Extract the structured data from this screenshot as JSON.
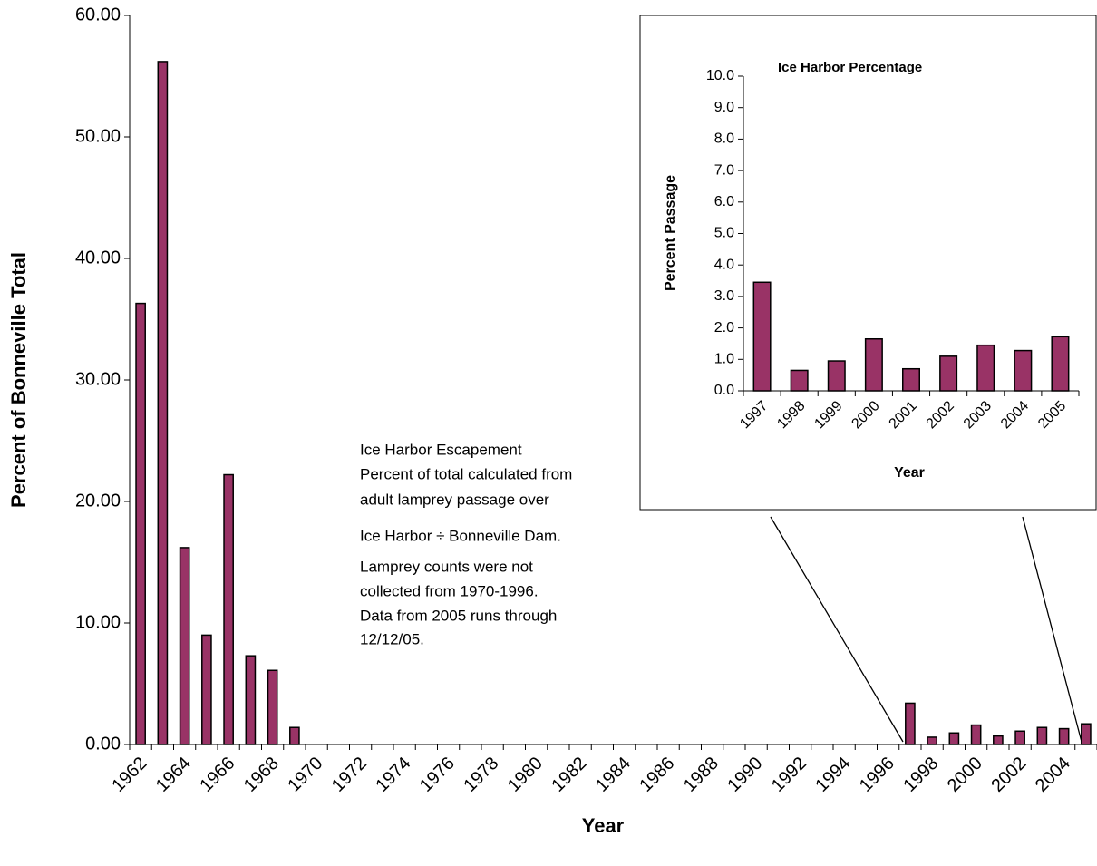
{
  "chart_data": [
    {
      "type": "bar",
      "annotations": [
        "Ice Harbor Escapement",
        "Percent of total calculated from",
        "adult lamprey passage over",
        "Ice Harbor ÷ Bonneville Dam.",
        "Lamprey counts were not",
        "collected from 1970-1996.",
        "Data from 2005 runs through",
        "12/12/05."
      ],
      "x_label": "Year",
      "y_label": "Percent of Bonneville Total",
      "categories": [
        "1962",
        null,
        "1964",
        null,
        "1966",
        null,
        "1968",
        null,
        "1970",
        null,
        "1972",
        null,
        "1974",
        null,
        "1976",
        null,
        "1978",
        null,
        "1980",
        null,
        "1982",
        null,
        "1984",
        null,
        "1986",
        null,
        "1988",
        null,
        "1990",
        null,
        "1992",
        null,
        "1994",
        null,
        "1996",
        null,
        "1998",
        null,
        "2000",
        null,
        "2002",
        null,
        "2004",
        null
      ],
      "values": [
        36.3,
        56.2,
        16.2,
        9.0,
        22.2,
        7.3,
        6.1,
        1.4,
        null,
        null,
        null,
        null,
        null,
        null,
        null,
        null,
        null,
        null,
        null,
        null,
        null,
        null,
        null,
        null,
        null,
        null,
        null,
        null,
        null,
        null,
        null,
        null,
        null,
        null,
        null,
        3.4,
        0.6,
        0.95,
        1.6,
        0.7,
        1.1,
        1.4,
        1.3,
        1.7
      ],
      "color": "#993366",
      "ylim": [
        0,
        60
      ],
      "yticks": [
        {
          "value": 0,
          "label": "0.00"
        },
        {
          "value": 10,
          "label": "10.00"
        },
        {
          "value": 20,
          "label": "20.00"
        },
        {
          "value": 30,
          "label": "30.00"
        },
        {
          "value": 40,
          "label": "40.00"
        },
        {
          "value": 50,
          "label": "50.00"
        },
        {
          "value": 60,
          "label": "60.00"
        }
      ],
      "grid": false
    },
    {
      "type": "bar",
      "title": "Ice Harbor Percentage",
      "x_label": "Year",
      "y_label": "Percent Passage",
      "categories": [
        "1997",
        "1998",
        "1999",
        "2000",
        "2001",
        "2002",
        "2003",
        "2004",
        "2005"
      ],
      "values": [
        3.45,
        0.65,
        0.95,
        1.65,
        0.7,
        1.1,
        1.45,
        1.28,
        1.72
      ],
      "color": "#993366",
      "ylim": [
        0,
        10
      ],
      "yticks": [
        {
          "value": 0,
          "label": "0.0"
        },
        {
          "value": 1,
          "label": "1.0"
        },
        {
          "value": 2,
          "label": "2.0"
        },
        {
          "value": 3,
          "label": "3.0"
        },
        {
          "value": 4,
          "label": "4.0"
        },
        {
          "value": 5,
          "label": "5.0"
        },
        {
          "value": 6,
          "label": "6.0"
        },
        {
          "value": 7,
          "label": "7.0"
        },
        {
          "value": 8,
          "label": "8.0"
        },
        {
          "value": 9,
          "label": "9.0"
        },
        {
          "value": 10,
          "label": "10.0"
        }
      ],
      "grid": false
    }
  ]
}
